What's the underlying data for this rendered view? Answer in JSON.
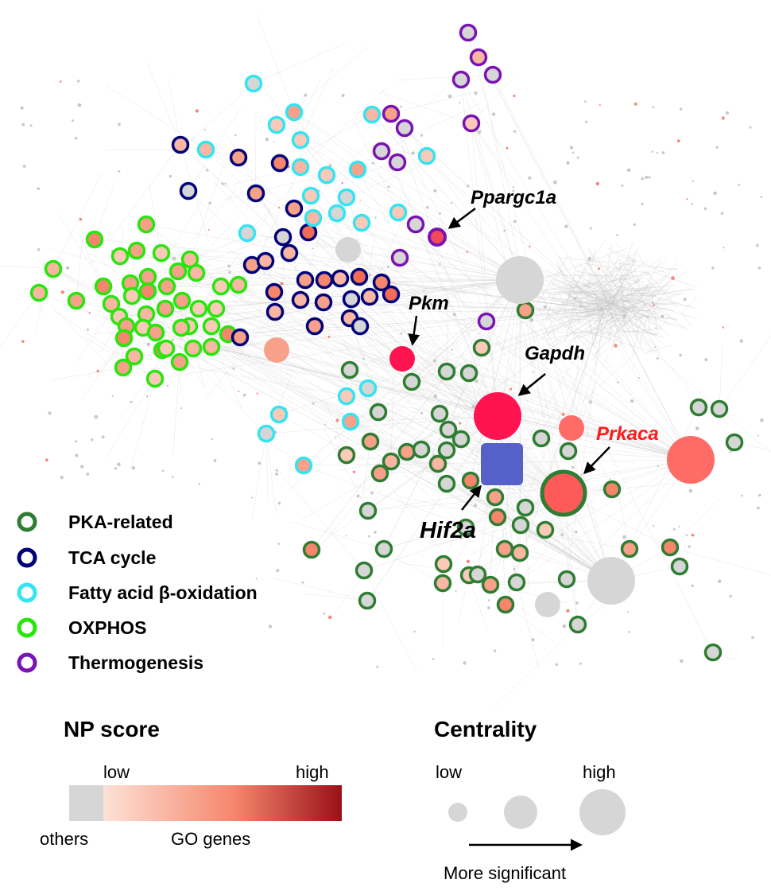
{
  "colors": {
    "pka": "#2e7d32",
    "tca": "#00007a",
    "fao": "#33e4f2",
    "oxphos": "#26e60a",
    "thermo": "#7a13b3",
    "others_fill": "#d6d6d6",
    "np_low": "#fde2d6",
    "np_mid": "#f5866c",
    "np_high": "#9b1018",
    "gapdh": "#ff1450",
    "prkaca_fill": "#ff5a5a",
    "prkaca_label": "#ff1a1a",
    "hif2a": "#5560c8",
    "edge": "#d0d0d0"
  },
  "gene_labels": {
    "ppargc1a": "Ppargc1a",
    "pkm": "Pkm",
    "gapdh": "Gapdh",
    "prkaca": "Prkaca",
    "hif2a": "Hif2a"
  },
  "legend": {
    "items": [
      {
        "key": "pka",
        "label": "PKA-related"
      },
      {
        "key": "tca",
        "label": "TCA cycle"
      },
      {
        "key": "fao",
        "label": "Fatty acid β-oxidation"
      },
      {
        "key": "oxphos",
        "label": "OXPHOS"
      },
      {
        "key": "thermo",
        "label": "Thermogenesis"
      }
    ]
  },
  "np_score": {
    "title": "NP score",
    "low": "low",
    "high": "high",
    "others": "others",
    "go_genes": "GO genes"
  },
  "centrality": {
    "title": "Centrality",
    "low": "low",
    "high": "high",
    "caption": "More significant"
  }
}
